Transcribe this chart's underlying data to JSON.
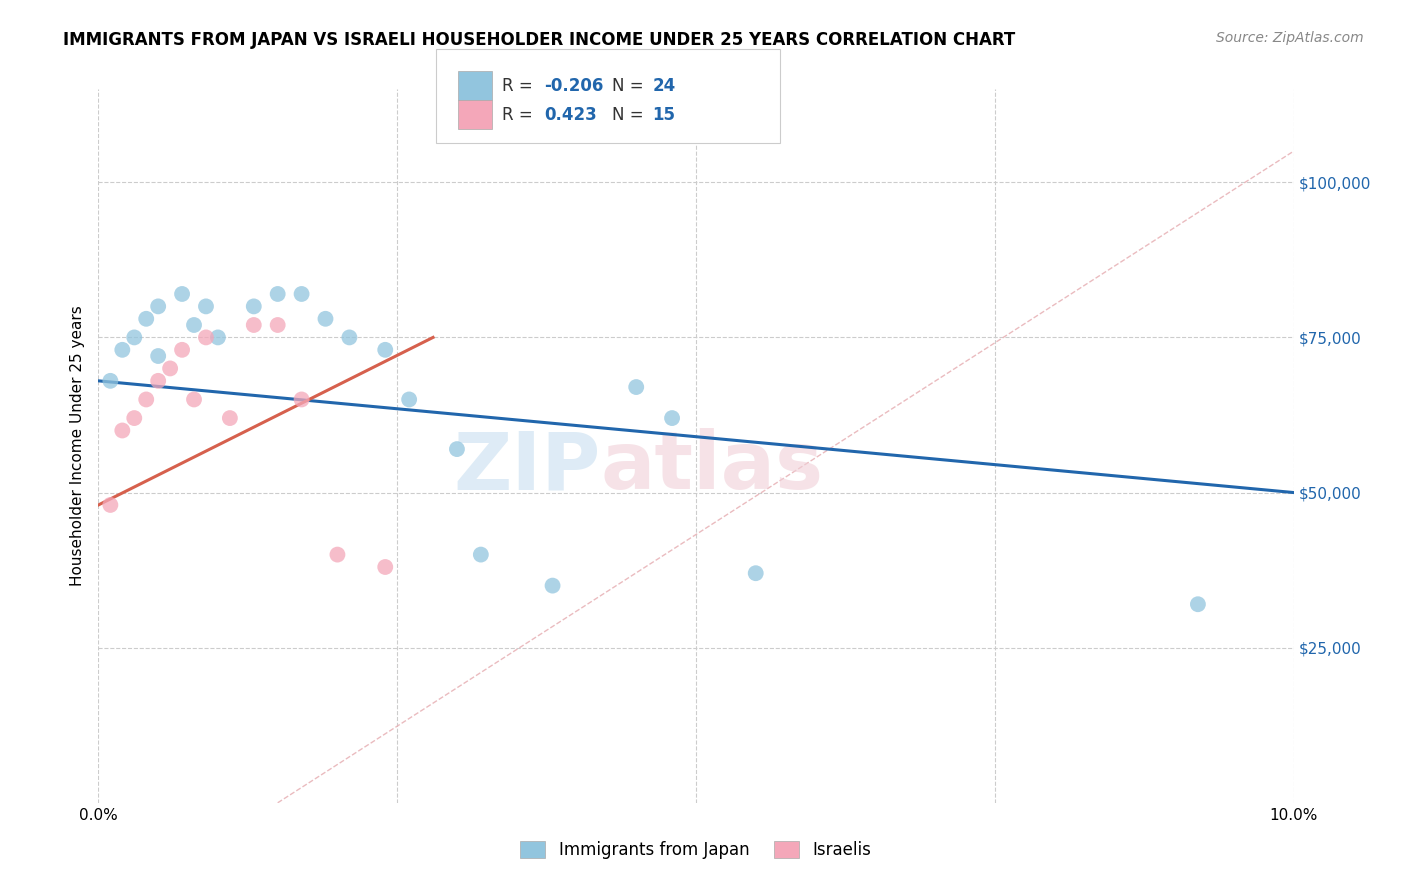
{
  "title": "IMMIGRANTS FROM JAPAN VS ISRAELI HOUSEHOLDER INCOME UNDER 25 YEARS CORRELATION CHART",
  "source": "Source: ZipAtlas.com",
  "ylabel": "Householder Income Under 25 years",
  "xlim": [
    0.0,
    0.1
  ],
  "ylim": [
    0,
    115000
  ],
  "blue_color": "#92c5de",
  "pink_color": "#f4a7b9",
  "line_blue": "#2166ac",
  "line_pink": "#d6604d",
  "diagonal_color": "#ddbbbb",
  "japan_x": [
    0.001,
    0.002,
    0.003,
    0.004,
    0.005,
    0.005,
    0.007,
    0.008,
    0.009,
    0.01,
    0.013,
    0.015,
    0.017,
    0.019,
    0.021,
    0.024,
    0.026,
    0.03,
    0.032,
    0.038,
    0.045,
    0.055,
    0.092,
    0.048
  ],
  "japan_y": [
    68000,
    73000,
    75000,
    78000,
    80000,
    72000,
    82000,
    77000,
    80000,
    75000,
    80000,
    82000,
    82000,
    78000,
    75000,
    73000,
    65000,
    57000,
    40000,
    35000,
    67000,
    37000,
    32000,
    62000
  ],
  "israeli_x": [
    0.001,
    0.002,
    0.003,
    0.004,
    0.005,
    0.006,
    0.007,
    0.008,
    0.009,
    0.011,
    0.013,
    0.015,
    0.017,
    0.02,
    0.024
  ],
  "israeli_y": [
    48000,
    60000,
    62000,
    65000,
    68000,
    70000,
    73000,
    65000,
    75000,
    62000,
    77000,
    77000,
    65000,
    40000,
    38000
  ],
  "blue_line_x0": 0.0,
  "blue_line_y0": 68000,
  "blue_line_x1": 0.1,
  "blue_line_y1": 50000,
  "pink_line_x0": 0.0,
  "pink_line_y0": 48000,
  "pink_line_x1": 0.028,
  "pink_line_y1": 75000
}
